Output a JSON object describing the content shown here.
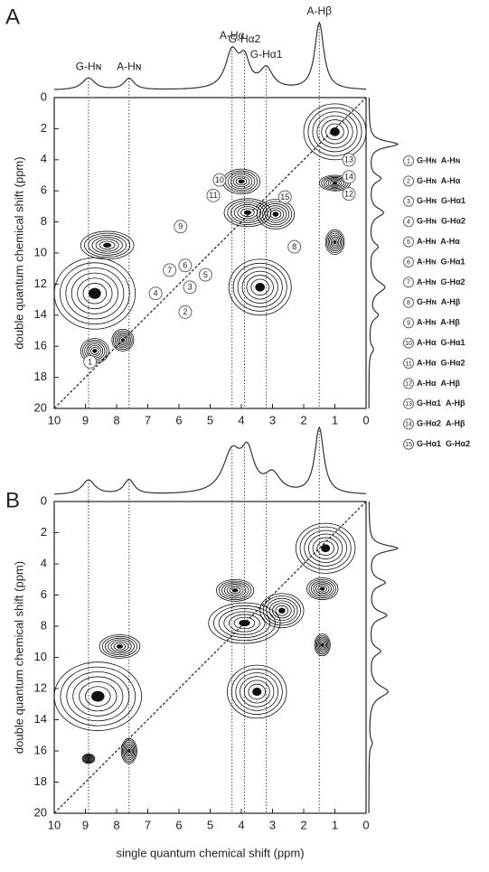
{
  "chart_data": [
    {
      "type": "contour",
      "panel": "A",
      "ylabel": "double quantum chemical shift (ppm)",
      "xlim": [
        10,
        0
      ],
      "ylim": [
        20,
        0
      ],
      "xticks": [
        10,
        9,
        8,
        7,
        6,
        5,
        4,
        3,
        2,
        1,
        0
      ],
      "yticks": [
        0,
        2,
        4,
        6,
        8,
        10,
        12,
        14,
        16,
        18,
        20
      ],
      "assignments": [
        {
          "label": "G-Hɴ",
          "x": 8.9
        },
        {
          "label": "A-Hɴ",
          "x": 7.6
        },
        {
          "label": "A-Hα",
          "x": 4.3
        },
        {
          "label": "G-Hα2",
          "x": 3.9
        },
        {
          "label": "G-Hα1",
          "x": 3.2
        },
        {
          "label": "A-Hβ",
          "x": 1.5
        }
      ],
      "peaks": [
        {
          "x": 8.7,
          "y": 12.6,
          "width": 2.6,
          "height": 4.6
        },
        {
          "x": 8.3,
          "y": 9.5,
          "width": 1.7,
          "height": 1.8
        },
        {
          "x": 8.7,
          "y": 16.3,
          "width": 0.9,
          "height": 1.6
        },
        {
          "x": 7.8,
          "y": 15.6,
          "width": 0.7,
          "height": 1.4
        },
        {
          "x": 3.4,
          "y": 12.2,
          "width": 2.0,
          "height": 3.6
        },
        {
          "x": 4.0,
          "y": 5.4,
          "width": 1.2,
          "height": 1.6
        },
        {
          "x": 3.8,
          "y": 7.4,
          "width": 1.5,
          "height": 1.8
        },
        {
          "x": 2.9,
          "y": 7.5,
          "width": 1.2,
          "height": 1.9
        },
        {
          "x": 1.0,
          "y": 2.2,
          "width": 2.0,
          "height": 3.6
        },
        {
          "x": 1.0,
          "y": 5.5,
          "width": 1.0,
          "height": 1.0
        },
        {
          "x": 1.0,
          "y": 9.3,
          "width": 0.6,
          "height": 1.6
        }
      ],
      "projection_top": [
        {
          "x": 8.9,
          "height": 0.18,
          "width": 0.5
        },
        {
          "x": 7.6,
          "height": 0.17,
          "width": 0.4
        },
        {
          "x": 4.3,
          "height": 0.55,
          "width": 0.5
        },
        {
          "x": 3.9,
          "height": 0.4,
          "width": 0.4
        },
        {
          "x": 3.2,
          "height": 0.3,
          "width": 0.5
        },
        {
          "x": 1.5,
          "height": 1.0,
          "width": 0.35
        }
      ],
      "projection_right": [
        {
          "y": 3.0,
          "height": 1.0,
          "width": 0.5
        },
        {
          "y": 5.2,
          "height": 0.4,
          "width": 0.6
        },
        {
          "y": 7.4,
          "height": 0.5,
          "width": 0.7
        },
        {
          "y": 9.6,
          "height": 0.3,
          "width": 0.6
        },
        {
          "y": 12.2,
          "height": 0.55,
          "width": 0.9
        },
        {
          "y": 14.0,
          "height": 0.3,
          "width": 0.6
        },
        {
          "y": 16.2,
          "height": 0.15,
          "width": 0.6
        }
      ],
      "annotations": [
        {
          "text": "1",
          "x": 8.85,
          "y": 17.0
        },
        {
          "text": "2",
          "x": 5.8,
          "y": 13.8
        },
        {
          "text": "3",
          "x": 5.65,
          "y": 12.2
        },
        {
          "text": "4",
          "x": 6.75,
          "y": 12.6
        },
        {
          "text": "5",
          "x": 5.15,
          "y": 11.4
        },
        {
          "text": "6",
          "x": 5.8,
          "y": 10.8
        },
        {
          "text": "7",
          "x": 6.3,
          "y": 11.1
        },
        {
          "text": "8",
          "x": 2.3,
          "y": 9.6
        },
        {
          "text": "9",
          "x": 5.95,
          "y": 8.3
        },
        {
          "text": "10",
          "x": 4.7,
          "y": 5.3
        },
        {
          "text": "11",
          "x": 4.9,
          "y": 6.3
        },
        {
          "text": "12",
          "x": 0.55,
          "y": 6.2
        },
        {
          "text": "13",
          "x": 0.55,
          "y": 4.0
        },
        {
          "text": "14",
          "x": 0.55,
          "y": 5.1
        },
        {
          "text": "15",
          "x": 2.6,
          "y": 6.4
        }
      ],
      "legend": [
        {
          "number": "1",
          "label": "G-Hɴ  A-Hɴ"
        },
        {
          "number": "2",
          "label": "G-Hɴ  A-Hα"
        },
        {
          "number": "3",
          "label": "G-Hɴ  G-Hα1"
        },
        {
          "number": "4",
          "label": "G-Hɴ  G-Hα2"
        },
        {
          "number": "5",
          "label": "A-Hɴ  A-Hα"
        },
        {
          "number": "6",
          "label": "A-Hɴ  G-Hα1"
        },
        {
          "number": "7",
          "label": "A-Hɴ  G-Hα2"
        },
        {
          "number": "8",
          "label": "G-Hɴ  A-Hβ"
        },
        {
          "number": "9",
          "label": "A-Hɴ  A-Hβ"
        },
        {
          "number": "10",
          "label": "A-Hα  G-Hα1"
        },
        {
          "number": "11",
          "label": "A-Hα  G-Hα2"
        },
        {
          "number": "12",
          "label": "A-Hα  A-Hβ"
        },
        {
          "number": "13",
          "label": "G-Hα1  A-Hβ"
        },
        {
          "number": "14",
          "label": "G-Hα2  A-Hβ"
        },
        {
          "number": "15",
          "label": "G-Hα1  G-Hα2"
        }
      ]
    },
    {
      "type": "contour",
      "panel": "B",
      "ylabel": "double quantum chemical shift (ppm)",
      "xlabel": "single quantum chemical shift (ppm)",
      "xlim": [
        10,
        0
      ],
      "ylim": [
        20,
        0
      ],
      "xticks": [
        10,
        9,
        8,
        7,
        6,
        5,
        4,
        3,
        2,
        1,
        0
      ],
      "yticks": [
        0,
        2,
        4,
        6,
        8,
        10,
        12,
        14,
        16,
        18,
        20
      ],
      "guides": [
        8.9,
        7.6,
        4.3,
        3.9,
        3.2,
        1.5
      ],
      "peaks": [
        {
          "x": 8.6,
          "y": 12.5,
          "width": 2.8,
          "height": 4.4
        },
        {
          "x": 7.9,
          "y": 9.3,
          "width": 1.3,
          "height": 1.5
        },
        {
          "x": 7.6,
          "y": 16.0,
          "width": 0.5,
          "height": 1.6
        },
        {
          "x": 8.9,
          "y": 16.5,
          "width": 0.4,
          "height": 0.6
        },
        {
          "x": 3.5,
          "y": 12.2,
          "width": 1.9,
          "height": 3.4
        },
        {
          "x": 4.2,
          "y": 5.7,
          "width": 1.2,
          "height": 1.4
        },
        {
          "x": 3.9,
          "y": 7.8,
          "width": 2.3,
          "height": 2.6
        },
        {
          "x": 2.7,
          "y": 7.0,
          "width": 1.4,
          "height": 2.2
        },
        {
          "x": 1.3,
          "y": 3.0,
          "width": 1.9,
          "height": 3.2
        },
        {
          "x": 1.4,
          "y": 5.6,
          "width": 1.0,
          "height": 1.4
        },
        {
          "x": 1.4,
          "y": 9.2,
          "width": 0.5,
          "height": 1.4
        }
      ],
      "projection_top": [
        {
          "x": 8.9,
          "height": 0.2,
          "width": 0.5
        },
        {
          "x": 7.6,
          "height": 0.2,
          "width": 0.4
        },
        {
          "x": 4.3,
          "height": 0.55,
          "width": 0.7
        },
        {
          "x": 3.8,
          "height": 0.5,
          "width": 0.5
        },
        {
          "x": 3.0,
          "height": 0.25,
          "width": 0.6
        },
        {
          "x": 1.5,
          "height": 0.9,
          "width": 0.35
        }
      ],
      "projection_right": [
        {
          "y": 3.0,
          "height": 0.9,
          "width": 0.5
        },
        {
          "y": 5.2,
          "height": 0.5,
          "width": 0.6
        },
        {
          "y": 7.3,
          "height": 0.55,
          "width": 0.6
        },
        {
          "y": 9.6,
          "height": 0.35,
          "width": 0.6
        },
        {
          "y": 12.2,
          "height": 0.6,
          "width": 0.9
        },
        {
          "y": 15.5,
          "height": 0.1,
          "width": 0.6
        }
      ]
    }
  ]
}
